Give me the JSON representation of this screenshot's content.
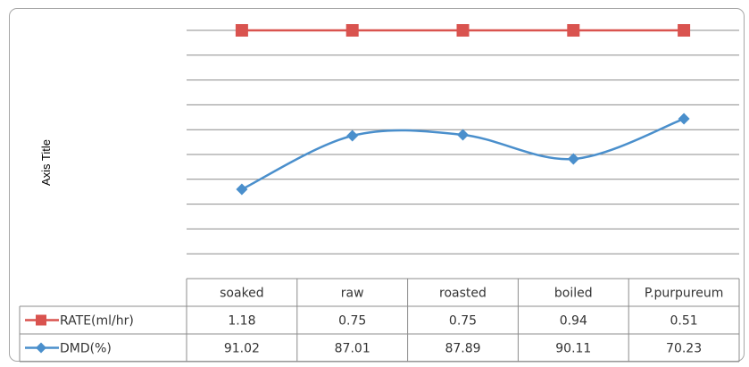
{
  "chart_data": {
    "type": "line",
    "ylabel": "Axis Title",
    "categories": [
      "soaked",
      "raw",
      "roasted",
      "boiled",
      "P.purpureum"
    ],
    "series": [
      {
        "name": "RATE(ml/hr)",
        "values": [
          1.18,
          0.75,
          0.75,
          0.94,
          0.51
        ],
        "color": "#d9534f",
        "marker": "square"
      },
      {
        "name": "DMD(%)",
        "values": [
          91.02,
          87.01,
          87.89,
          90.11,
          70.23
        ],
        "color": "#4a8fcc",
        "marker": "diamond"
      }
    ],
    "grid": true,
    "legend": "data-table"
  }
}
